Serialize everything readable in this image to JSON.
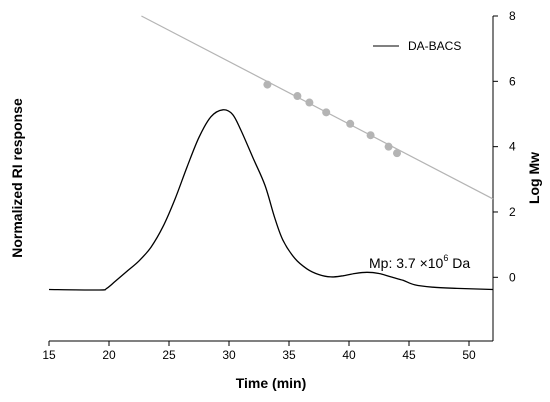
{
  "chart_data": {
    "type": "line",
    "xlabel": "Time (min)",
    "ylabel_left": "Normalized RI response",
    "ylabel_right": "Log Mw",
    "xlim": [
      15,
      52
    ],
    "x_ticks": [
      15,
      20,
      25,
      30,
      35,
      40,
      45,
      50
    ],
    "right_ylim": [
      -1.95,
      8
    ],
    "right_ticks": [
      0,
      2,
      4,
      6,
      8
    ],
    "left_ylim": [
      -0.02,
      1.4
    ],
    "legend": {
      "placement": "top-right",
      "entry": "DA-BACS"
    },
    "annotation": {
      "prefix": "Mp: 3.7 ×10",
      "exponent": "6",
      "suffix": " Da"
    },
    "series": [
      {
        "name": "DA-BACS",
        "axis": "left",
        "color": "#000000",
        "points": [
          [
            15,
            0.205
          ],
          [
            19.2,
            0.203
          ],
          [
            19.8,
            0.21
          ],
          [
            20.5,
            0.24
          ],
          [
            21.5,
            0.285
          ],
          [
            22.5,
            0.33
          ],
          [
            23.5,
            0.39
          ],
          [
            24.5,
            0.48
          ],
          [
            25.5,
            0.6
          ],
          [
            26.5,
            0.74
          ],
          [
            27.5,
            0.87
          ],
          [
            28.5,
            0.96
          ],
          [
            29.5,
            0.99
          ],
          [
            30.3,
            0.97
          ],
          [
            31,
            0.9
          ],
          [
            32,
            0.78
          ],
          [
            33,
            0.66
          ],
          [
            33.8,
            0.52
          ],
          [
            34.5,
            0.42
          ],
          [
            35.5,
            0.34
          ],
          [
            36.5,
            0.295
          ],
          [
            37.5,
            0.27
          ],
          [
            38.5,
            0.26
          ],
          [
            39.5,
            0.265
          ],
          [
            40.5,
            0.275
          ],
          [
            41.5,
            0.28
          ],
          [
            42.5,
            0.275
          ],
          [
            43.5,
            0.26
          ],
          [
            44.5,
            0.245
          ],
          [
            45.5,
            0.225
          ],
          [
            47,
            0.215
          ],
          [
            49,
            0.21
          ],
          [
            52,
            0.205
          ]
        ]
      },
      {
        "name": "calibration",
        "axis": "right",
        "color": "#b4b4b4",
        "type": "line",
        "points": [
          [
            22.7,
            8
          ],
          [
            52,
            2.4
          ]
        ]
      },
      {
        "name": "standards",
        "axis": "right",
        "color": "#b4b4b4",
        "type": "scatter",
        "points": [
          [
            33.2,
            5.9
          ],
          [
            35.7,
            5.55
          ],
          [
            36.7,
            5.35
          ],
          [
            38.1,
            5.05
          ],
          [
            40.1,
            4.7
          ],
          [
            41.8,
            4.35
          ],
          [
            43.3,
            4.0
          ],
          [
            44.0,
            3.8
          ]
        ]
      }
    ]
  }
}
